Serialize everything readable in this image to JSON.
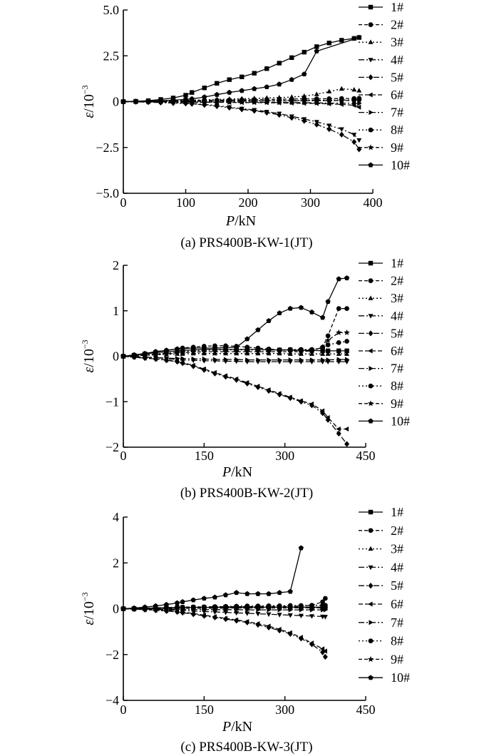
{
  "chart_data": [
    {
      "type": "line",
      "caption": "(a) PRS400B-KW-1(JT)",
      "xlabel_italic": "P",
      "xlabel_unit": "/kN",
      "ylabel_italic": "ε",
      "ylabel_unit": "/10",
      "ylabel_exp": "−3",
      "xlim": [
        0,
        400
      ],
      "ylim": [
        -5.0,
        5.0
      ],
      "xticks": [
        0,
        100,
        200,
        300,
        400
      ],
      "xtick_labels": [
        "0",
        "100",
        "200",
        "300",
        "400"
      ],
      "yticks": [
        -5.0,
        -2.5,
        0,
        2.5,
        5.0
      ],
      "ytick_labels": [
        "−5.0",
        "−2.5",
        "0",
        "2.5",
        "5.0"
      ],
      "x": [
        0,
        20,
        40,
        60,
        80,
        100,
        110,
        130,
        150,
        170,
        190,
        210,
        230,
        250,
        270,
        290,
        310,
        330,
        350,
        370,
        378
      ],
      "series": [
        {
          "name": "1#",
          "marker": "square",
          "dash": "",
          "values": [
            0,
            0.02,
            0.05,
            0.12,
            0.2,
            0.35,
            0.5,
            0.75,
            1.0,
            1.2,
            1.35,
            1.55,
            1.8,
            2.1,
            2.4,
            2.7,
            3.0,
            3.2,
            3.35,
            3.45,
            3.5
          ]
        },
        {
          "name": "2#",
          "marker": "circle",
          "dash": "5,3",
          "values": [
            0,
            0.01,
            0.02,
            0.03,
            0.04,
            0.05,
            0.06,
            0.07,
            0.08,
            0.09,
            0.1,
            0.11,
            0.12,
            0.13,
            0.14,
            0.15,
            0.15,
            0.16,
            0.17,
            0.17,
            0.18
          ]
        },
        {
          "name": "3#",
          "marker": "triangle-up",
          "dash": "2,3",
          "values": [
            0,
            0.01,
            0.02,
            0.03,
            0.05,
            0.07,
            0.08,
            0.1,
            0.12,
            0.14,
            0.16,
            0.18,
            0.2,
            0.22,
            0.25,
            0.3,
            0.4,
            0.55,
            0.7,
            0.65,
            0.6
          ]
        },
        {
          "name": "4#",
          "marker": "triangle-down",
          "dash": "8,3,2,3",
          "values": [
            0,
            -0.01,
            -0.02,
            -0.04,
            -0.06,
            -0.08,
            -0.1,
            -0.15,
            -0.22,
            -0.3,
            -0.38,
            -0.45,
            -0.55,
            -0.65,
            -0.8,
            -0.95,
            -1.1,
            -1.3,
            -1.5,
            -1.8,
            -2.1
          ]
        },
        {
          "name": "5#",
          "marker": "diamond",
          "dash": "8,3,2,3,2,3",
          "values": [
            0,
            -0.01,
            -0.03,
            -0.05,
            -0.08,
            -0.1,
            -0.12,
            -0.18,
            -0.25,
            -0.33,
            -0.42,
            -0.5,
            -0.6,
            -0.72,
            -0.88,
            -1.05,
            -1.25,
            -1.5,
            -1.8,
            -2.2,
            -2.6
          ]
        },
        {
          "name": "6#",
          "marker": "triangle-left",
          "dash": "6,3",
          "values": [
            0,
            0,
            -0.01,
            -0.01,
            -0.02,
            -0.02,
            -0.03,
            -0.03,
            -0.04,
            -0.04,
            -0.05,
            -0.05,
            -0.06,
            -0.07,
            -0.08,
            -0.09,
            -0.1,
            -0.12,
            -0.15,
            -0.2,
            -0.3
          ]
        },
        {
          "name": "7#",
          "marker": "triangle-right",
          "dash": "8,3,2,3",
          "values": [
            0,
            0,
            -0.01,
            -0.01,
            -0.01,
            -0.02,
            -0.02,
            -0.02,
            -0.03,
            -0.03,
            -0.03,
            -0.04,
            -0.04,
            -0.05,
            -0.05,
            -0.06,
            -0.07,
            -0.08,
            -0.08,
            -0.09,
            -0.1
          ]
        },
        {
          "name": "8#",
          "marker": "circle",
          "dash": "2,3",
          "values": [
            0,
            0,
            0.01,
            0.01,
            0.02,
            0.02,
            0.03,
            0.03,
            0.04,
            0.04,
            0.05,
            0.05,
            0.05,
            0.06,
            0.06,
            0.07,
            0.07,
            0.08,
            0.08,
            0.09,
            0.1
          ]
        },
        {
          "name": "9#",
          "marker": "star",
          "dash": "5,3",
          "values": [
            0,
            0,
            0,
            0.01,
            0.01,
            0.01,
            0.02,
            0.02,
            0.02,
            0.03,
            0.03,
            0.03,
            0.04,
            0.04,
            0.04,
            0.05,
            0.05,
            0.05,
            0.06,
            0.06,
            0.07
          ]
        },
        {
          "name": "10#",
          "marker": "pentagon",
          "dash": "",
          "values": [
            0,
            0.01,
            0.03,
            0.05,
            0.08,
            0.12,
            0.15,
            0.25,
            0.38,
            0.5,
            0.6,
            0.7,
            0.8,
            0.95,
            1.2,
            1.5,
            2.75,
            null,
            null,
            null,
            3.5
          ]
        }
      ],
      "legend_position": "right"
    },
    {
      "type": "line",
      "caption": "(b) PRS400B-KW-2(JT)",
      "xlabel_italic": "P",
      "xlabel_unit": "/kN",
      "ylabel_italic": "ε",
      "ylabel_unit": "/10",
      "ylabel_exp": "−3",
      "xlim": [
        0,
        450
      ],
      "ylim": [
        -2,
        2
      ],
      "xticks": [
        0,
        150,
        300,
        450
      ],
      "xtick_labels": [
        "0",
        "150",
        "300",
        "450"
      ],
      "yticks": [
        -2,
        -1,
        0,
        1,
        2
      ],
      "ytick_labels": [
        "−2",
        "−1",
        "0",
        "1",
        "2"
      ],
      "x": [
        0,
        20,
        40,
        60,
        80,
        100,
        110,
        130,
        150,
        170,
        190,
        210,
        230,
        250,
        270,
        290,
        310,
        330,
        350,
        370,
        380,
        400,
        415
      ],
      "series": [
        {
          "name": "1#",
          "marker": "square",
          "dash": "",
          "values": [
            0,
            0.02,
            0.05,
            0.08,
            0.1,
            0.12,
            0.13,
            0.14,
            0.15,
            0.15,
            0.15,
            0.15,
            0.15,
            0.15,
            0.14,
            0.14,
            0.14,
            0.13,
            0.13,
            0.12,
            0.12,
            0.12,
            0.12
          ]
        },
        {
          "name": "2#",
          "marker": "circle",
          "dash": "5,3",
          "values": [
            0,
            0.03,
            0.06,
            0.1,
            0.13,
            0.16,
            0.18,
            0.2,
            0.22,
            0.23,
            0.23,
            0.22,
            0.2,
            0.18,
            0.16,
            0.14,
            0.13,
            0.12,
            0.12,
            0.2,
            0.45,
            1.05,
            1.05
          ]
        },
        {
          "name": "3#",
          "marker": "triangle-up",
          "dash": "2,3",
          "values": [
            0,
            0.01,
            0.02,
            0.03,
            0.04,
            0.05,
            0.05,
            0.06,
            0.06,
            0.06,
            0.06,
            0.06,
            0.06,
            0.06,
            0.06,
            0.06,
            0.05,
            0.05,
            0.05,
            0.05,
            0.05,
            0.05,
            0.05
          ]
        },
        {
          "name": "4#",
          "marker": "triangle-down",
          "dash": "8,3,2,3",
          "values": [
            0,
            -0.01,
            -0.02,
            -0.03,
            -0.05,
            -0.07,
            -0.08,
            -0.09,
            -0.1,
            -0.1,
            -0.11,
            -0.11,
            -0.12,
            -0.12,
            -0.12,
            -0.12,
            -0.12,
            -0.12,
            -0.12,
            -0.12,
            -0.12,
            -0.12,
            -0.12
          ]
        },
        {
          "name": "5#",
          "marker": "diamond",
          "dash": "8,3,2,3,2,3",
          "values": [
            0,
            -0.02,
            -0.04,
            -0.06,
            -0.09,
            -0.12,
            -0.15,
            -0.22,
            -0.3,
            -0.38,
            -0.45,
            -0.52,
            -0.6,
            -0.68,
            -0.76,
            -0.84,
            -0.92,
            -1.0,
            -1.08,
            -1.25,
            -1.4,
            -1.7,
            -1.93
          ]
        },
        {
          "name": "6#",
          "marker": "triangle-left",
          "dash": "6,3",
          "values": [
            0,
            -0.02,
            -0.04,
            -0.06,
            -0.08,
            -0.11,
            -0.14,
            -0.2,
            -0.28,
            -0.36,
            -0.43,
            -0.5,
            -0.58,
            -0.66,
            -0.74,
            -0.82,
            -0.9,
            -0.98,
            -1.05,
            -1.2,
            -1.35,
            -1.6,
            -1.6
          ]
        },
        {
          "name": "7#",
          "marker": "triangle-right",
          "dash": "8,3,2,3",
          "values": [
            0,
            -0.01,
            -0.02,
            -0.03,
            -0.04,
            -0.05,
            -0.05,
            -0.06,
            -0.06,
            -0.07,
            -0.07,
            -0.07,
            -0.08,
            -0.08,
            -0.08,
            -0.08,
            -0.08,
            -0.08,
            -0.08,
            -0.08,
            -0.08,
            -0.07,
            -0.07
          ]
        },
        {
          "name": "8#",
          "marker": "circle",
          "dash": "2,3",
          "values": [
            0,
            0.01,
            0.03,
            0.05,
            0.07,
            0.09,
            0.1,
            0.12,
            0.13,
            0.14,
            0.14,
            0.14,
            0.14,
            0.14,
            0.14,
            0.14,
            0.15,
            0.15,
            0.15,
            0.18,
            0.25,
            0.3,
            0.33
          ]
        },
        {
          "name": "9#",
          "marker": "star",
          "dash": "5,3",
          "values": [
            0,
            0.01,
            0.02,
            0.04,
            0.05,
            0.07,
            0.08,
            0.09,
            0.1,
            0.1,
            0.1,
            0.1,
            0.1,
            0.1,
            0.1,
            0.1,
            0.1,
            0.1,
            0.12,
            0.2,
            0.35,
            0.52,
            0.52
          ]
        },
        {
          "name": "10#",
          "marker": "pentagon",
          "dash": "",
          "values": [
            0,
            0.03,
            0.06,
            0.1,
            0.13,
            0.16,
            0.17,
            0.18,
            0.18,
            0.18,
            0.19,
            0.2,
            0.38,
            0.58,
            0.78,
            0.95,
            1.05,
            1.07,
            0.97,
            0.85,
            1.2,
            1.7,
            1.72
          ]
        }
      ],
      "legend_position": "right"
    },
    {
      "type": "line",
      "caption": "(c) PRS400B-KW-3(JT)",
      "xlabel_italic": "P",
      "xlabel_unit": "/kN",
      "ylabel_italic": "ε",
      "ylabel_unit": "/10",
      "ylabel_exp": "−3",
      "xlim": [
        0,
        450
      ],
      "ylim": [
        -4,
        4
      ],
      "xticks": [
        0,
        150,
        300,
        450
      ],
      "xtick_labels": [
        "0",
        "150",
        "300",
        "450"
      ],
      "yticks": [
        -4,
        -2,
        0,
        2,
        4
      ],
      "ytick_labels": [
        "−4",
        "−2",
        "0",
        "2",
        "4"
      ],
      "x": [
        0,
        20,
        40,
        60,
        80,
        100,
        110,
        130,
        150,
        170,
        190,
        210,
        230,
        250,
        270,
        290,
        310,
        330,
        350,
        370,
        375
      ],
      "series": [
        {
          "name": "1#",
          "marker": "square",
          "dash": "",
          "values": [
            0,
            0.01,
            0.02,
            0.03,
            0.04,
            0.05,
            0.05,
            0.06,
            0.06,
            0.06,
            0.07,
            0.07,
            0.07,
            0.07,
            0.07,
            0.07,
            0.07,
            0.07,
            0.07,
            0.07,
            0.07
          ]
        },
        {
          "name": "2#",
          "marker": "circle",
          "dash": "5,3",
          "values": [
            0,
            0.01,
            0.02,
            0.04,
            0.05,
            0.06,
            0.07,
            0.08,
            0.08,
            0.09,
            0.09,
            0.09,
            0.09,
            0.1,
            0.1,
            0.1,
            0.1,
            0.12,
            0.15,
            0.3,
            0.45
          ]
        },
        {
          "name": "3#",
          "marker": "triangle-up",
          "dash": "2,3",
          "values": [
            0,
            0.01,
            0.01,
            0.02,
            0.02,
            0.03,
            0.03,
            0.03,
            0.04,
            0.04,
            0.04,
            0.04,
            0.05,
            0.05,
            0.05,
            0.05,
            0.05,
            0.05,
            0.05,
            0.05,
            0.05
          ]
        },
        {
          "name": "4#",
          "marker": "triangle-down",
          "dash": "8,3,2,3",
          "values": [
            0,
            -0.01,
            -0.02,
            -0.03,
            -0.05,
            -0.07,
            -0.08,
            -0.1,
            -0.12,
            -0.14,
            -0.16,
            -0.18,
            -0.2,
            -0.22,
            -0.24,
            -0.26,
            -0.28,
            -0.3,
            -0.32,
            -0.34,
            -0.35
          ]
        },
        {
          "name": "5#",
          "marker": "diamond",
          "dash": "8,3,2,3,2,3",
          "values": [
            0,
            -0.02,
            -0.04,
            -0.07,
            -0.1,
            -0.14,
            -0.17,
            -0.24,
            -0.31,
            -0.38,
            -0.45,
            -0.52,
            -0.6,
            -0.7,
            -0.82,
            -0.95,
            -1.1,
            -1.3,
            -1.55,
            -1.9,
            -2.1
          ]
        },
        {
          "name": "6#",
          "marker": "triangle-left",
          "dash": "6,3",
          "values": [
            0,
            -0.02,
            -0.04,
            -0.06,
            -0.09,
            -0.12,
            -0.15,
            -0.21,
            -0.28,
            -0.35,
            -0.42,
            -0.49,
            -0.56,
            -0.65,
            -0.76,
            -0.9,
            -1.05,
            -1.25,
            -1.5,
            -1.75,
            -1.85
          ]
        },
        {
          "name": "7#",
          "marker": "triangle-right",
          "dash": "8,3,2,3",
          "values": [
            0,
            -0.01,
            -0.01,
            -0.02,
            -0.02,
            -0.03,
            -0.03,
            -0.03,
            -0.04,
            -0.04,
            -0.04,
            -0.04,
            -0.05,
            -0.05,
            -0.05,
            -0.05,
            -0.05,
            -0.05,
            -0.05,
            -0.05,
            -0.05
          ]
        },
        {
          "name": "8#",
          "marker": "circle",
          "dash": "2,3",
          "values": [
            0,
            0.01,
            0.02,
            0.03,
            0.04,
            0.05,
            0.06,
            0.07,
            0.08,
            0.09,
            0.1,
            0.11,
            0.12,
            0.12,
            0.13,
            0.13,
            0.14,
            0.14,
            0.15,
            0.15,
            0.15
          ]
        },
        {
          "name": "9#",
          "marker": "star",
          "dash": "5,3",
          "values": [
            0,
            0,
            0,
            0.01,
            0.01,
            0.01,
            0.02,
            0.02,
            0.02,
            0.02,
            0.03,
            0.03,
            0.03,
            0.03,
            0.03,
            0.03,
            0.03,
            0.04,
            0.04,
            0.04,
            0.04
          ]
        },
        {
          "name": "10#",
          "marker": "pentagon",
          "dash": "",
          "values": [
            0,
            0.03,
            0.07,
            0.12,
            0.18,
            0.25,
            0.3,
            0.38,
            0.45,
            0.5,
            0.6,
            0.7,
            0.65,
            0.65,
            0.65,
            0.7,
            0.75,
            2.65,
            null,
            null,
            null
          ]
        }
      ],
      "legend_position": "right"
    }
  ]
}
